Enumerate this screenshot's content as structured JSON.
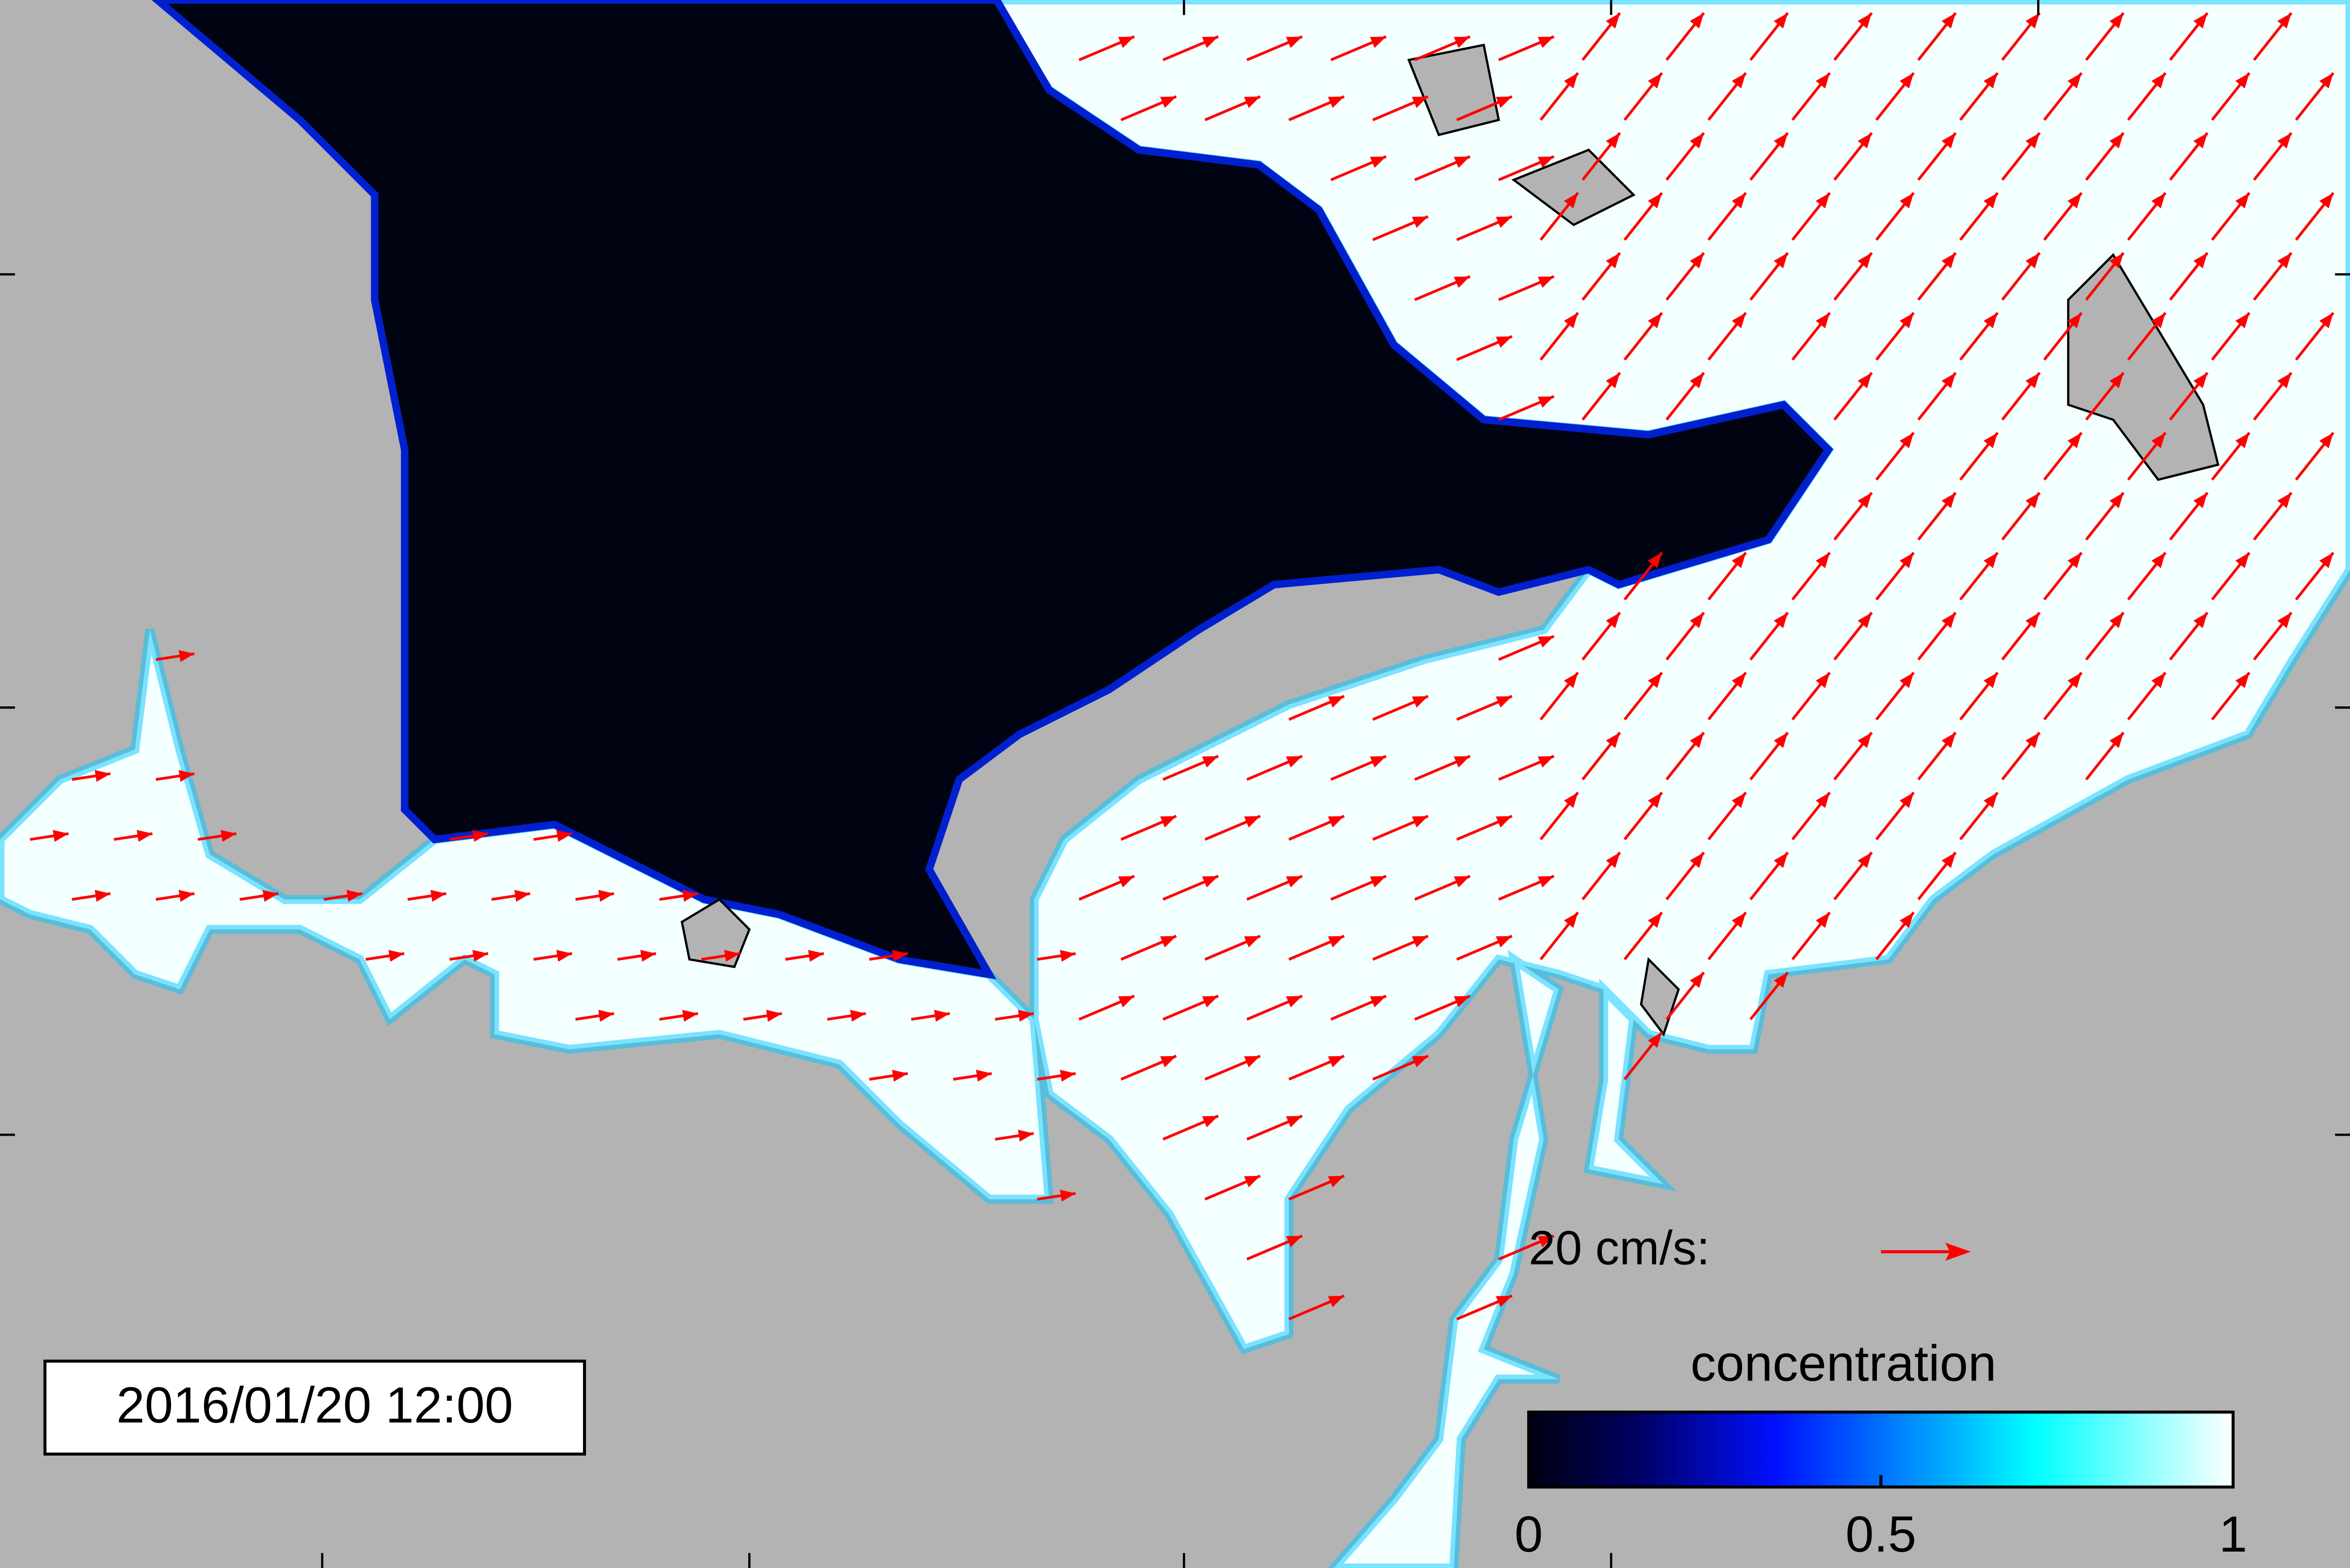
{
  "timestamp": "2016/01/20 12:00",
  "velocity_scale_label": "20 cm/s:",
  "colorbar": {
    "label": "concentration",
    "lim": [
      0,
      1
    ],
    "ticks": [
      0,
      0.5,
      1
    ]
  }
}
